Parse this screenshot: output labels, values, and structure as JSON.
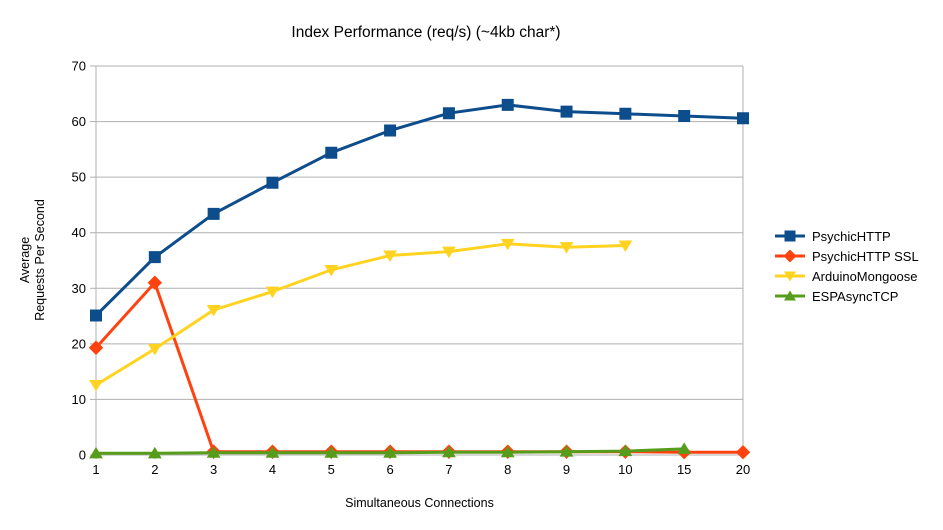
{
  "chart_data": {
    "type": "line",
    "title": "Index Performance (req/s) (~4kb char*)",
    "xlabel": "Simultaneous Connections",
    "ylabel": "Average Requests Per Second",
    "ylabel_lines": [
      "Average",
      "Requests Per Second"
    ],
    "categories": [
      "1",
      "2",
      "3",
      "4",
      "5",
      "6",
      "7",
      "8",
      "9",
      "10",
      "15",
      "20"
    ],
    "ylim": [
      0,
      70
    ],
    "ytick_step": 10,
    "grid": true,
    "legend_position": "right",
    "axis_color": "#b0b0b0",
    "text_color": "#000000",
    "series": [
      {
        "name": "PsychicHTTP",
        "color": "#0d4d8c",
        "marker": "square",
        "values": [
          25.1,
          35.6,
          43.4,
          49.0,
          54.4,
          58.4,
          61.5,
          63.0,
          61.8,
          61.4,
          61.0,
          60.6
        ]
      },
      {
        "name": "PsychicHTTP SSL",
        "color": "#ff420e",
        "marker": "diamond",
        "values": [
          19.3,
          31.0,
          0.6,
          0.6,
          0.6,
          0.6,
          0.6,
          0.6,
          0.6,
          0.6,
          0.5,
          0.5
        ]
      },
      {
        "name": "ArduinoMongoose",
        "color": "#ffd320",
        "marker": "triangle-down",
        "values": [
          12.6,
          19.1,
          26.1,
          29.4,
          33.3,
          35.9,
          36.6,
          38.0,
          37.4,
          37.7,
          null,
          null
        ]
      },
      {
        "name": "ESPAsyncTCP",
        "color": "#579d1c",
        "marker": "triangle-up",
        "values": [
          0.3,
          0.3,
          0.4,
          0.4,
          0.4,
          0.4,
          0.5,
          0.5,
          0.6,
          0.7,
          1.1,
          null
        ]
      }
    ]
  }
}
